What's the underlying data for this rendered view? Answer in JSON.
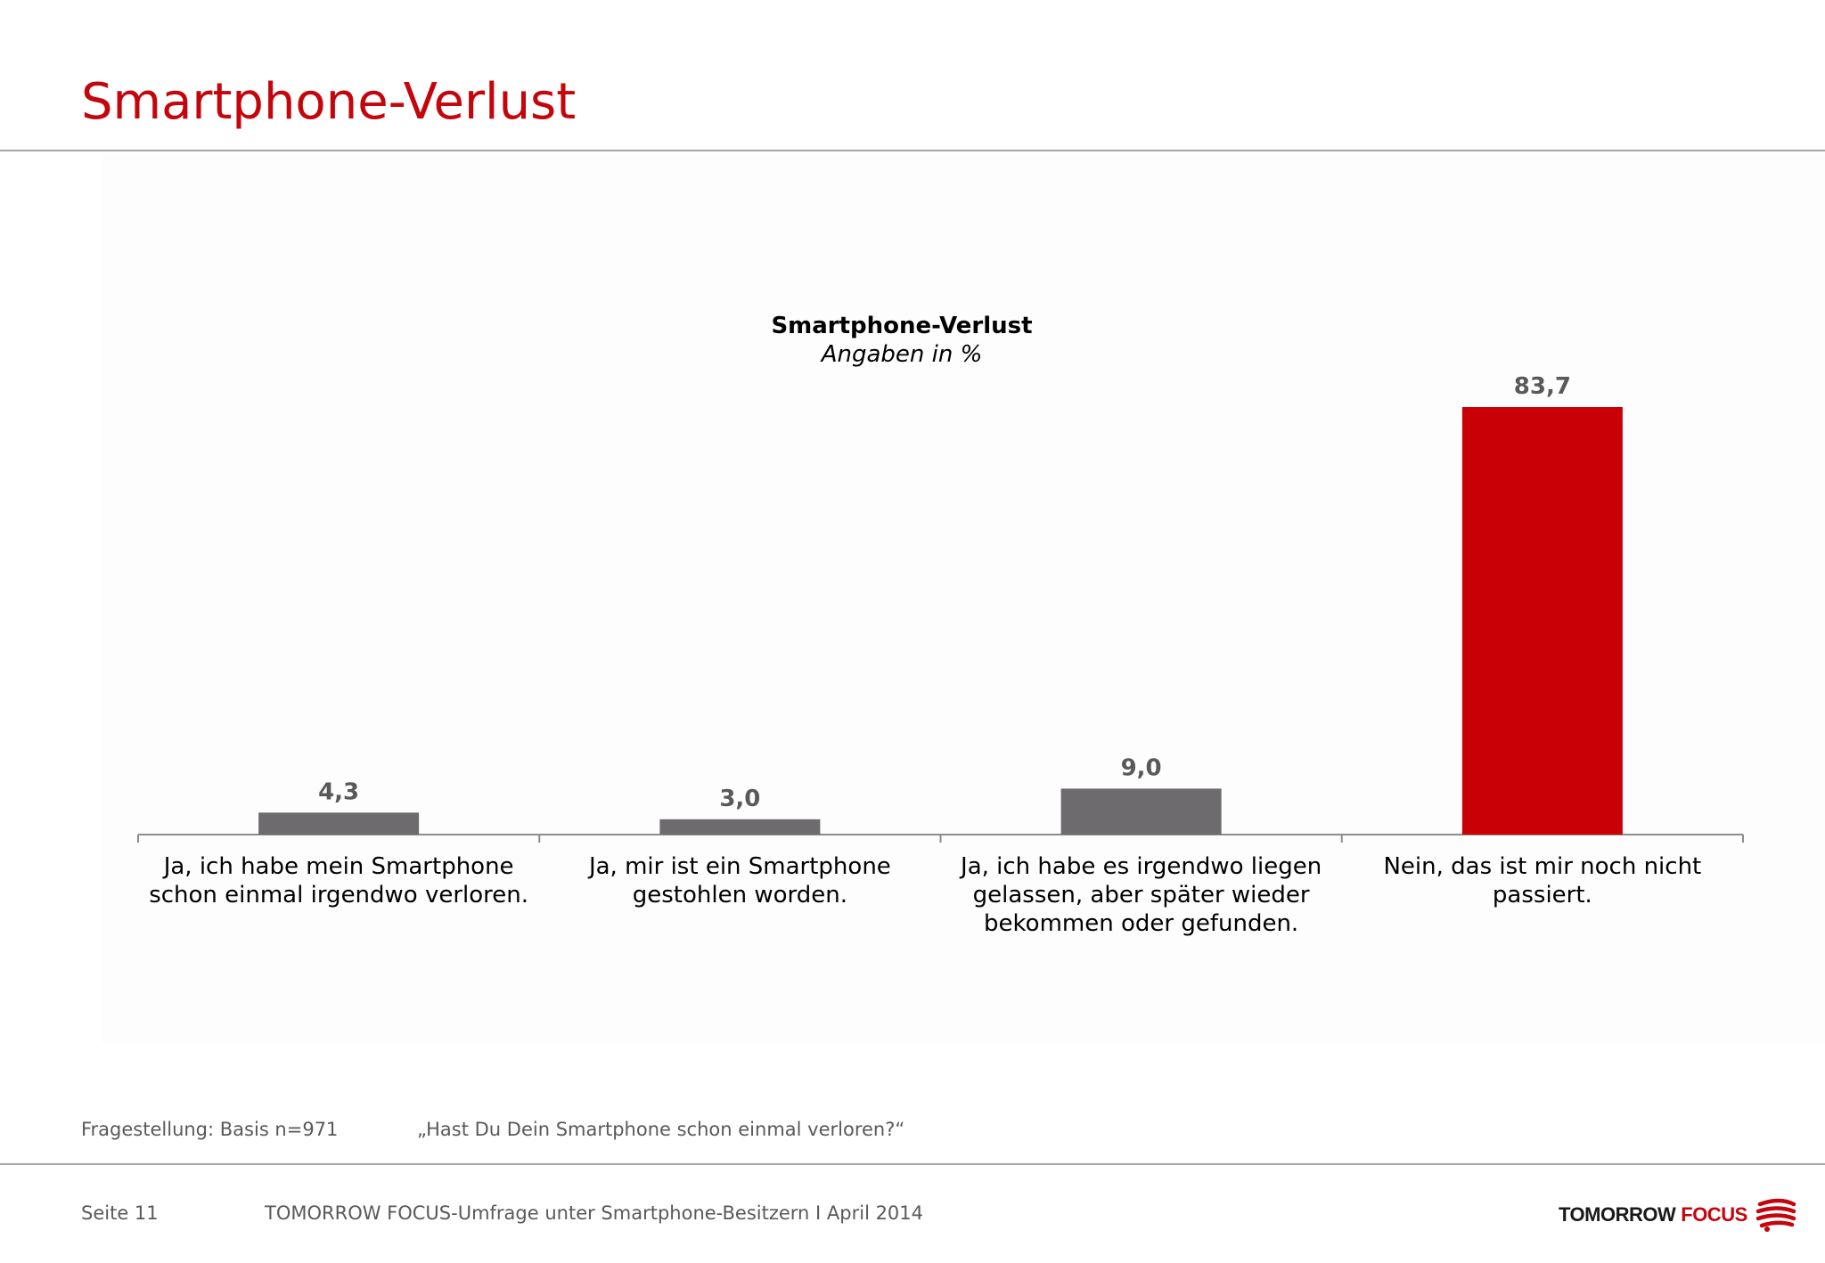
{
  "slide": {
    "title": "Smartphone-Verlust",
    "title_color": "#c5050c"
  },
  "chart_data": {
    "type": "bar",
    "title": "Smartphone-Verlust",
    "subtitle": "Angaben in %",
    "categories": [
      [
        "Ja, ich habe mein Smartphone",
        "schon einmal irgendwo verloren."
      ],
      [
        "Ja, mir ist ein Smartphone",
        "gestohlen worden."
      ],
      [
        "Ja, ich  habe es irgendwo liegen",
        "gelassen, aber später wieder",
        "bekommen oder gefunden."
      ],
      [
        "Nein, das ist mir noch nicht",
        "passiert."
      ]
    ],
    "values": [
      4.3,
      3.0,
      9.0,
      83.7
    ],
    "value_labels": [
      "4,3",
      "3,0",
      "9,0",
      "83,7"
    ],
    "bar_colors": [
      "#6d6b6e",
      "#6d6b6e",
      "#6d6b6e",
      "#c90005"
    ],
    "ylim": [
      0,
      100
    ],
    "grid": false,
    "legend": "none"
  },
  "footnote": {
    "label": "Fragestellung: Basis n=971",
    "question": "„Hast Du Dein Smartphone schon einmal verloren?“"
  },
  "footer": {
    "page": "Seite 11",
    "source": "TOMORROW FOCUS-Umfrage unter Smartphone-Besitzern I April 2014"
  },
  "logo": {
    "word1": "TOMORROW",
    "word2": "FOCUS",
    "icon": "tomorrow-focus-swirl-icon"
  }
}
